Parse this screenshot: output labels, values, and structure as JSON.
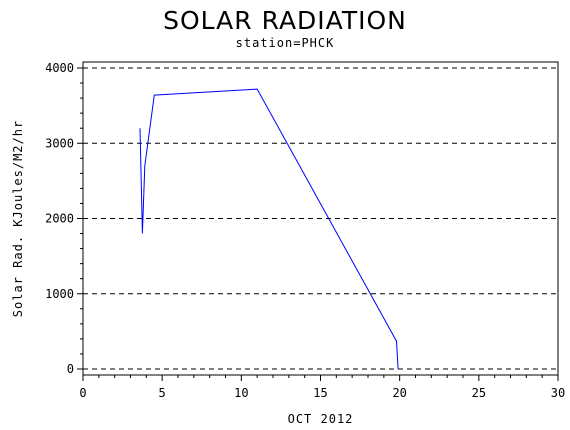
{
  "chart_data": {
    "type": "line",
    "title": "SOLAR RADIATION",
    "subtitle": "station=PHCK",
    "xlabel": "OCT 2012",
    "ylabel": "Solar Rad. KJoules/M2/hr",
    "xlim": [
      0,
      30
    ],
    "ylim": [
      0,
      4000
    ],
    "x_ticks": [
      0,
      5,
      10,
      15,
      20,
      25,
      30
    ],
    "y_ticks": [
      0,
      1000,
      2000,
      3000,
      4000
    ],
    "grid": "horizontal dashed",
    "series": [
      {
        "color": "#0000ff",
        "points": [
          [
            3.6,
            3200
          ],
          [
            3.75,
            1800
          ],
          [
            3.9,
            2700
          ],
          [
            4.5,
            3640
          ],
          [
            11.0,
            3720
          ],
          [
            19.8,
            370
          ],
          [
            19.9,
            0
          ]
        ]
      }
    ]
  }
}
